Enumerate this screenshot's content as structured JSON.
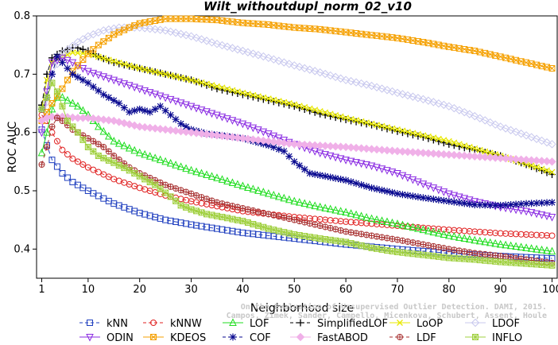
{
  "chart_data": {
    "type": "line",
    "title": "Wilt_withoutdupl_norm_02_v10",
    "xlabel": "Neighborhood size",
    "ylabel": "ROC AUC",
    "xlim": [
      0,
      101
    ],
    "ylim": [
      0.35,
      0.8
    ],
    "xticks": [
      1,
      10,
      20,
      30,
      40,
      50,
      60,
      70,
      80,
      90,
      100
    ],
    "yticks": [
      0.4,
      0.5,
      0.6,
      0.7,
      0.8
    ],
    "legend_position": "bottom",
    "watermark": "Campos, Zimek, Sander, Campello, Micenkova, Schubert, Assent, Houle\nOn the Evaluation of Unsupervised Outlier Detection. DAMI, 2015.",
    "series": [
      {
        "name": "kNN",
        "color": "#1f3fbf",
        "marker": "square",
        "dash": "5,4",
        "points": [
          [
            1,
            0.605
          ],
          [
            2,
            0.578
          ],
          [
            3,
            0.553
          ],
          [
            5,
            0.53
          ],
          [
            7,
            0.515
          ],
          [
            10,
            0.5
          ],
          [
            15,
            0.478
          ],
          [
            20,
            0.462
          ],
          [
            25,
            0.45
          ],
          [
            30,
            0.442
          ],
          [
            35,
            0.435
          ],
          [
            40,
            0.428
          ],
          [
            50,
            0.418
          ],
          [
            60,
            0.408
          ],
          [
            70,
            0.4
          ],
          [
            80,
            0.393
          ],
          [
            90,
            0.388
          ],
          [
            100,
            0.384
          ]
        ]
      },
      {
        "name": "kNNW",
        "color": "#e02020",
        "marker": "circle",
        "dash": "5,4",
        "points": [
          [
            1,
            0.63
          ],
          [
            2,
            0.62
          ],
          [
            3,
            0.6
          ],
          [
            5,
            0.57
          ],
          [
            7,
            0.555
          ],
          [
            10,
            0.54
          ],
          [
            15,
            0.52
          ],
          [
            20,
            0.505
          ],
          [
            25,
            0.492
          ],
          [
            30,
            0.482
          ],
          [
            40,
            0.465
          ],
          [
            50,
            0.455
          ],
          [
            60,
            0.447
          ],
          [
            70,
            0.44
          ],
          [
            80,
            0.433
          ],
          [
            90,
            0.427
          ],
          [
            100,
            0.423
          ]
        ]
      },
      {
        "name": "LOF",
        "color": "#20dd20",
        "marker": "triangle",
        "points": [
          [
            1,
            0.565
          ],
          [
            2,
            0.6
          ],
          [
            3,
            0.64
          ],
          [
            4,
            0.66
          ],
          [
            5,
            0.66
          ],
          [
            6,
            0.655
          ],
          [
            8,
            0.645
          ],
          [
            10,
            0.63
          ],
          [
            12,
            0.61
          ],
          [
            15,
            0.585
          ],
          [
            20,
            0.565
          ],
          [
            25,
            0.55
          ],
          [
            30,
            0.535
          ],
          [
            35,
            0.522
          ],
          [
            40,
            0.508
          ],
          [
            45,
            0.495
          ],
          [
            50,
            0.482
          ],
          [
            55,
            0.472
          ],
          [
            60,
            0.463
          ],
          [
            65,
            0.452
          ],
          [
            70,
            0.443
          ],
          [
            75,
            0.433
          ],
          [
            80,
            0.423
          ],
          [
            85,
            0.415
          ],
          [
            90,
            0.408
          ],
          [
            95,
            0.402
          ],
          [
            100,
            0.396
          ]
        ]
      },
      {
        "name": "SimplifiedLOF",
        "color": "#000000",
        "marker": "plus",
        "dash": "6,3",
        "points": [
          [
            1,
            0.647
          ],
          [
            2,
            0.7
          ],
          [
            3,
            0.728
          ],
          [
            5,
            0.74
          ],
          [
            7,
            0.745
          ],
          [
            8,
            0.745
          ],
          [
            10,
            0.74
          ],
          [
            12,
            0.73
          ],
          [
            15,
            0.72
          ],
          [
            20,
            0.71
          ],
          [
            25,
            0.7
          ],
          [
            30,
            0.69
          ],
          [
            35,
            0.675
          ],
          [
            40,
            0.665
          ],
          [
            45,
            0.655
          ],
          [
            50,
            0.645
          ],
          [
            55,
            0.632
          ],
          [
            60,
            0.622
          ],
          [
            65,
            0.613
          ],
          [
            70,
            0.602
          ],
          [
            75,
            0.592
          ],
          [
            80,
            0.58
          ],
          [
            85,
            0.57
          ],
          [
            90,
            0.56
          ],
          [
            95,
            0.545
          ],
          [
            100,
            0.528
          ]
        ]
      },
      {
        "name": "LoOP",
        "color": "#e8e800",
        "marker": "x",
        "points": [
          [
            1,
            0.64
          ],
          [
            2,
            0.69
          ],
          [
            3,
            0.72
          ],
          [
            5,
            0.73
          ],
          [
            7,
            0.737
          ],
          [
            10,
            0.735
          ],
          [
            15,
            0.722
          ],
          [
            20,
            0.71
          ],
          [
            25,
            0.7
          ],
          [
            30,
            0.69
          ],
          [
            40,
            0.668
          ],
          [
            50,
            0.648
          ],
          [
            60,
            0.625
          ],
          [
            70,
            0.605
          ],
          [
            80,
            0.585
          ],
          [
            90,
            0.56
          ],
          [
            100,
            0.532
          ]
        ]
      },
      {
        "name": "LDOF",
        "color": "#c8c8ee",
        "marker": "diamond",
        "points": [
          [
            1,
            0.605
          ],
          [
            3,
            0.7
          ],
          [
            5,
            0.735
          ],
          [
            8,
            0.755
          ],
          [
            10,
            0.765
          ],
          [
            13,
            0.775
          ],
          [
            16,
            0.78
          ],
          [
            20,
            0.78
          ],
          [
            25,
            0.775
          ],
          [
            30,
            0.765
          ],
          [
            35,
            0.752
          ],
          [
            40,
            0.74
          ],
          [
            45,
            0.728
          ],
          [
            50,
            0.715
          ],
          [
            55,
            0.703
          ],
          [
            60,
            0.69
          ],
          [
            65,
            0.68
          ],
          [
            70,
            0.668
          ],
          [
            75,
            0.657
          ],
          [
            80,
            0.645
          ],
          [
            85,
            0.628
          ],
          [
            90,
            0.61
          ],
          [
            95,
            0.595
          ],
          [
            100,
            0.58
          ]
        ]
      },
      {
        "name": "ODIN",
        "color": "#8a2be2",
        "marker": "triangle-down",
        "points": [
          [
            1,
            0.6
          ],
          [
            2,
            0.67
          ],
          [
            3,
            0.72
          ],
          [
            5,
            0.728
          ],
          [
            7,
            0.72
          ],
          [
            10,
            0.705
          ],
          [
            15,
            0.69
          ],
          [
            20,
            0.675
          ],
          [
            25,
            0.66
          ],
          [
            30,
            0.645
          ],
          [
            35,
            0.63
          ],
          [
            40,
            0.615
          ],
          [
            45,
            0.598
          ],
          [
            50,
            0.58
          ],
          [
            55,
            0.565
          ],
          [
            60,
            0.553
          ],
          [
            65,
            0.543
          ],
          [
            70,
            0.53
          ],
          [
            75,
            0.512
          ],
          [
            80,
            0.495
          ],
          [
            85,
            0.482
          ],
          [
            90,
            0.472
          ],
          [
            95,
            0.465
          ],
          [
            100,
            0.455
          ]
        ]
      },
      {
        "name": "KDEOS",
        "color": "#f5a000",
        "marker": "square-x",
        "points": [
          [
            1,
            0.62
          ],
          [
            3,
            0.65
          ],
          [
            5,
            0.675
          ],
          [
            7,
            0.705
          ],
          [
            10,
            0.735
          ],
          [
            12,
            0.75
          ],
          [
            15,
            0.768
          ],
          [
            18,
            0.78
          ],
          [
            20,
            0.787
          ],
          [
            25,
            0.795
          ],
          [
            30,
            0.795
          ],
          [
            35,
            0.793
          ],
          [
            40,
            0.788
          ],
          [
            45,
            0.785
          ],
          [
            50,
            0.78
          ],
          [
            55,
            0.777
          ],
          [
            60,
            0.772
          ],
          [
            65,
            0.767
          ],
          [
            70,
            0.762
          ],
          [
            75,
            0.755
          ],
          [
            80,
            0.747
          ],
          [
            85,
            0.74
          ],
          [
            90,
            0.73
          ],
          [
            95,
            0.72
          ],
          [
            100,
            0.71
          ]
        ]
      },
      {
        "name": "COF",
        "color": "#0a0a90",
        "marker": "asterisk",
        "dash": "6,3",
        "points": [
          [
            1,
            0.64
          ],
          [
            2,
            0.66
          ],
          [
            3,
            0.7
          ],
          [
            4,
            0.73
          ],
          [
            5,
            0.72
          ],
          [
            7,
            0.7
          ],
          [
            10,
            0.685
          ],
          [
            13,
            0.665
          ],
          [
            16,
            0.65
          ],
          [
            18,
            0.635
          ],
          [
            20,
            0.64
          ],
          [
            22,
            0.635
          ],
          [
            24,
            0.645
          ],
          [
            26,
            0.63
          ],
          [
            28,
            0.615
          ],
          [
            30,
            0.605
          ],
          [
            33,
            0.598
          ],
          [
            36,
            0.595
          ],
          [
            40,
            0.59
          ],
          [
            45,
            0.578
          ],
          [
            48,
            0.568
          ],
          [
            50,
            0.55
          ],
          [
            53,
            0.53
          ],
          [
            56,
            0.525
          ],
          [
            60,
            0.518
          ],
          [
            65,
            0.505
          ],
          [
            70,
            0.495
          ],
          [
            75,
            0.488
          ],
          [
            80,
            0.482
          ],
          [
            85,
            0.476
          ],
          [
            90,
            0.475
          ],
          [
            95,
            0.478
          ],
          [
            100,
            0.48
          ]
        ]
      },
      {
        "name": "FastABOD",
        "color": "#f0b0e8",
        "marker": "diamond-filled",
        "points": [
          [
            1,
            0.62
          ],
          [
            2,
            0.625
          ],
          [
            3,
            0.627
          ],
          [
            5,
            0.627
          ],
          [
            8,
            0.625
          ],
          [
            10,
            0.625
          ],
          [
            15,
            0.62
          ],
          [
            20,
            0.61
          ],
          [
            30,
            0.6
          ],
          [
            40,
            0.59
          ],
          [
            50,
            0.58
          ],
          [
            60,
            0.575
          ],
          [
            70,
            0.568
          ],
          [
            80,
            0.562
          ],
          [
            90,
            0.556
          ],
          [
            100,
            0.55
          ]
        ]
      },
      {
        "name": "LDF",
        "color": "#a83232",
        "marker": "circle-plus",
        "dash": "5,4",
        "points": [
          [
            1,
            0.545
          ],
          [
            2,
            0.575
          ],
          [
            3,
            0.61
          ],
          [
            4,
            0.625
          ],
          [
            5,
            0.62
          ],
          [
            7,
            0.605
          ],
          [
            10,
            0.59
          ],
          [
            13,
            0.575
          ],
          [
            15,
            0.56
          ],
          [
            18,
            0.54
          ],
          [
            20,
            0.53
          ],
          [
            25,
            0.51
          ],
          [
            30,
            0.495
          ],
          [
            35,
            0.48
          ],
          [
            40,
            0.47
          ],
          [
            45,
            0.46
          ],
          [
            50,
            0.45
          ],
          [
            55,
            0.44
          ],
          [
            60,
            0.43
          ],
          [
            65,
            0.423
          ],
          [
            70,
            0.416
          ],
          [
            75,
            0.408
          ],
          [
            80,
            0.4
          ],
          [
            85,
            0.393
          ],
          [
            90,
            0.388
          ],
          [
            95,
            0.382
          ],
          [
            100,
            0.376
          ]
        ]
      },
      {
        "name": "INFLO",
        "color": "#a0d040",
        "marker": "square-cross",
        "points": [
          [
            1,
            0.64
          ],
          [
            2,
            0.66
          ],
          [
            3,
            0.685
          ],
          [
            4,
            0.67
          ],
          [
            5,
            0.645
          ],
          [
            6,
            0.62
          ],
          [
            8,
            0.6
          ],
          [
            10,
            0.575
          ],
          [
            12,
            0.56
          ],
          [
            15,
            0.548
          ],
          [
            18,
            0.535
          ],
          [
            20,
            0.525
          ],
          [
            23,
            0.51
          ],
          [
            26,
            0.49
          ],
          [
            28,
            0.475
          ],
          [
            30,
            0.468
          ],
          [
            33,
            0.46
          ],
          [
            36,
            0.455
          ],
          [
            40,
            0.448
          ],
          [
            45,
            0.435
          ],
          [
            50,
            0.425
          ],
          [
            55,
            0.418
          ],
          [
            60,
            0.412
          ],
          [
            65,
            0.402
          ],
          [
            70,
            0.395
          ],
          [
            75,
            0.39
          ],
          [
            80,
            0.385
          ],
          [
            85,
            0.382
          ],
          [
            90,
            0.378
          ],
          [
            95,
            0.375
          ],
          [
            100,
            0.372
          ]
        ]
      }
    ]
  }
}
